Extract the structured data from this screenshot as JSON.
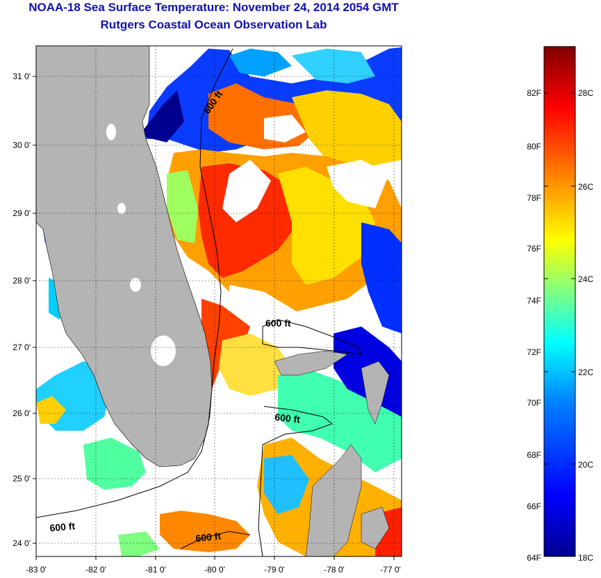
{
  "header": {
    "title": "NOAA-18 Sea Surface Temperature:  November 24, 2014 2054 GMT",
    "subtitle": "Rutgers Coastal Ocean Observation Lab"
  },
  "map": {
    "lon_ticks": [
      "-83 0'",
      "-82 0'",
      "-81 0'",
      "-80 0'",
      "-79 0'",
      "-78 0'",
      "-77 0'"
    ],
    "lat_ticks": [
      "31 0'",
      "30 0'",
      "29 0'",
      "28 0'",
      "27 0'",
      "26 0'",
      "25 0'",
      "24 0'"
    ],
    "contour_label": "600 ft",
    "land_color": "#b4b4b4",
    "grid": true
  },
  "colorbar": {
    "colors": [
      "#00008f",
      "#0000ff",
      "#0080ff",
      "#00ffff",
      "#80ff80",
      "#ffff00",
      "#ff8000",
      "#ff0000",
      "#800000"
    ],
    "f_labels": [
      "82F",
      "80F",
      "78F",
      "76F",
      "74F",
      "72F",
      "70F",
      "68F",
      "66F",
      "64F"
    ],
    "c_labels": [
      "28C",
      "26C",
      "24C",
      "22C",
      "20C",
      "18C"
    ]
  }
}
